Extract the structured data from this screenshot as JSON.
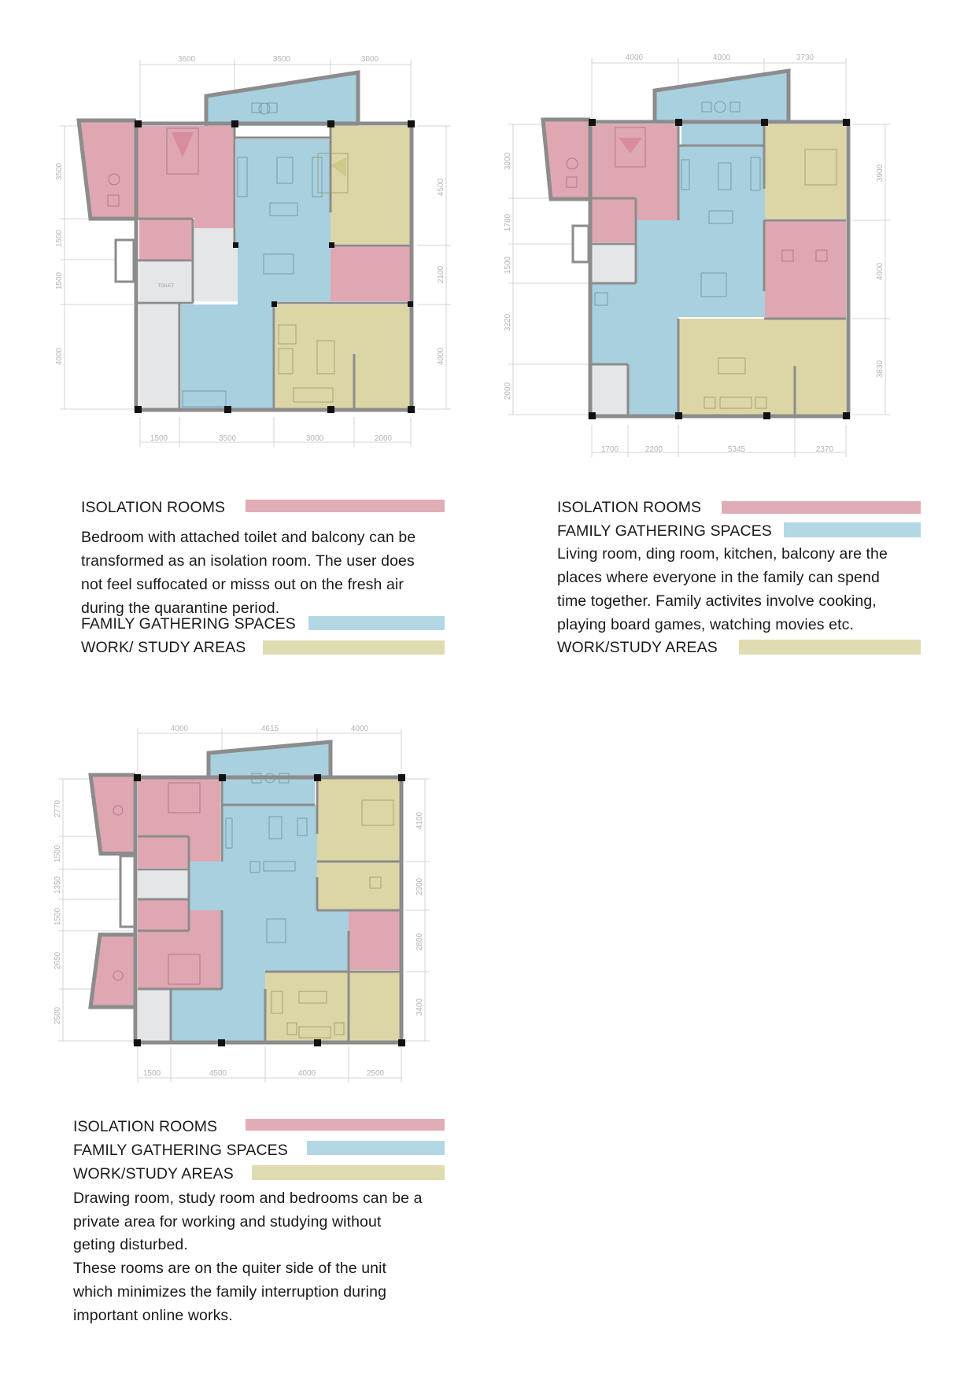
{
  "colors": {
    "isolation": "#e0adb6",
    "family": "#b3d8e4",
    "work": "#e0dcb1",
    "room_pink": "#dfa7b2",
    "room_blue": "#a8d0de",
    "room_yellow": "#dcd6a6",
    "room_grey": "#e4e6e8"
  },
  "plans": [
    {
      "dims_top": [
        "3600",
        "3500",
        "3000"
      ],
      "dims_bottom": [
        "1500",
        "3500",
        "3000",
        "2000"
      ],
      "dims_left": [
        "3500",
        "1500",
        "1500",
        "4000"
      ],
      "dims_right": [
        "4500",
        "2100",
        "4000"
      ],
      "room_label": "TOILET"
    },
    {
      "dims_top": [
        "4000",
        "4000",
        "3730"
      ],
      "dims_bottom": [
        "1700",
        "2200",
        "5345",
        "2370"
      ],
      "dims_left": [
        "3000",
        "1780",
        "1500",
        "3220",
        "2000"
      ],
      "dims_right": [
        "3900",
        "4000",
        "3830"
      ]
    },
    {
      "dims_top": [
        "4000",
        "4615",
        "4000"
      ],
      "dims_bottom": [
        "1500",
        "4500",
        "4000",
        "2500"
      ],
      "dims_left": [
        "2770",
        "1500",
        "1350",
        "1500",
        "2650",
        "2500"
      ],
      "dims_right": [
        "4100",
        "2300",
        "2800",
        "3400"
      ]
    }
  ],
  "legends": [
    {
      "isolation": "ISOLATION ROOMS",
      "description": [
        "Bedroom with attached toilet and balcony can be",
        "transformed as an isolation room. The user does",
        "not feel suffocated or misss out on the fresh air",
        "during the quarantine period."
      ],
      "family": "FAMILY GATHERING SPACES",
      "work": "WORK/ STUDY AREAS"
    },
    {
      "isolation": "ISOLATION ROOMS",
      "family": "FAMILY GATHERING SPACES",
      "description": [
        "Living room, ding room, kitchen, balcony are the",
        "places where everyone in the family can spend",
        "time together. Family activites involve cooking,",
        "playing board games, watching movies etc."
      ],
      "work": "WORK/STUDY AREAS"
    },
    {
      "isolation": "ISOLATION ROOMS",
      "family": "FAMILY GATHERING SPACES",
      "work": "WORK/STUDY AREAS",
      "description": [
        "Drawing room, study room and bedrooms can be a",
        "private area for working and studying without",
        "geting disturbed.",
        "These rooms are on the quiter side of the unit",
        "which minimizes the family interruption during",
        "important online works."
      ]
    }
  ]
}
